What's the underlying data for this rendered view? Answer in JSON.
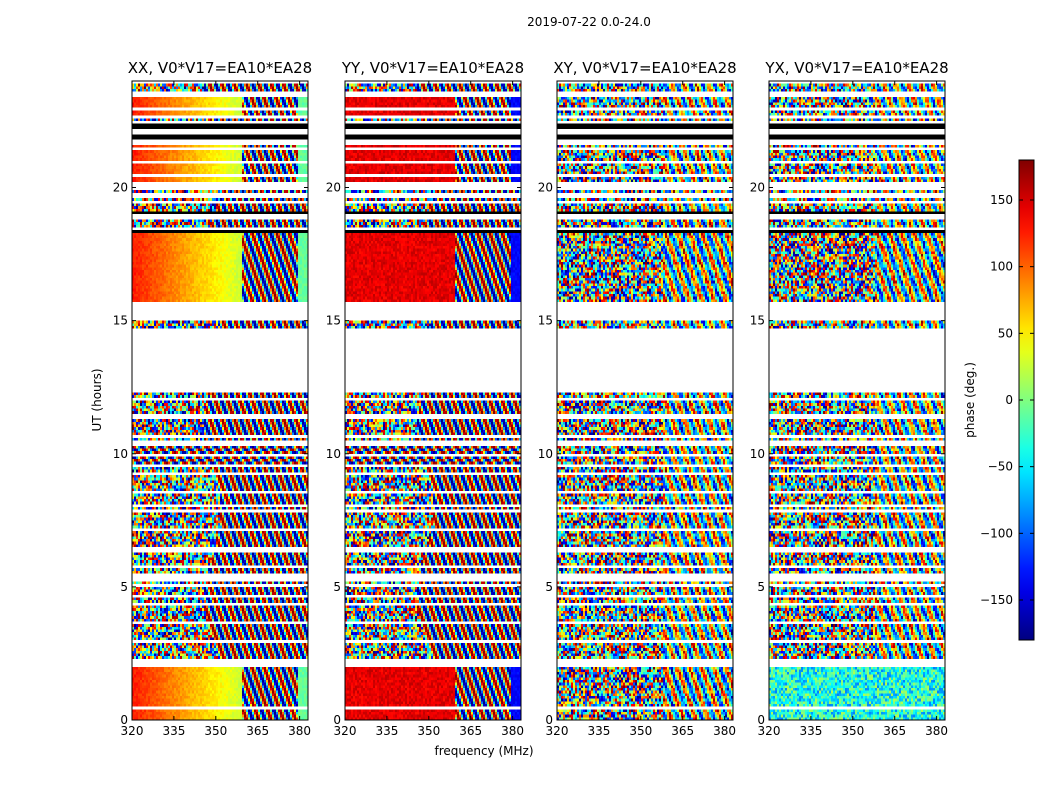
{
  "figure": {
    "suptitle": "2019-07-22 0.0-24.0",
    "xlabel": "frequency (MHz)",
    "ylabel": "UT (hours)",
    "colorbar_label": "phase (deg.)"
  },
  "chart_data": {
    "type": "heatmap",
    "colormap": "jet",
    "panels": [
      {
        "title": "XX, V0*V17=EA10*EA28",
        "pattern": "xx"
      },
      {
        "title": "YY, V0*V17=EA10*EA28",
        "pattern": "yy"
      },
      {
        "title": "XY, V0*V17=EA10*EA28",
        "pattern": "xy"
      },
      {
        "title": "YX, V0*V17=EA10*EA28",
        "pattern": "yx"
      }
    ],
    "x_range": [
      320,
      383
    ],
    "x_ticks": [
      320,
      335,
      350,
      365,
      380
    ],
    "x_tick_labels": [
      "320",
      "335",
      "350",
      "365",
      "380"
    ],
    "y_range": [
      0,
      24
    ],
    "y_ticks": [
      0,
      5,
      10,
      15,
      20
    ],
    "y_tick_labels": [
      "0",
      "5",
      "10",
      "15",
      "20"
    ],
    "colorbar": {
      "range": [
        -180,
        180
      ],
      "ticks": [
        -150,
        -100,
        -50,
        0,
        50,
        100,
        150
      ],
      "tick_labels": [
        "−150",
        "−100",
        "−50",
        "0",
        "50",
        "100",
        "150"
      ]
    },
    "flagged_ut_intervals": [
      [
        12.3,
        14.7
      ],
      [
        15.05,
        15.7
      ],
      [
        18.8,
        19.0
      ],
      [
        19.6,
        19.75
      ],
      [
        20.05,
        20.2
      ],
      [
        21.6,
        21.85
      ],
      [
        22.05,
        22.25
      ],
      [
        22.6,
        22.72
      ],
      [
        23.48,
        23.6
      ],
      [
        10.3,
        10.5
      ],
      [
        9.5,
        9.6
      ],
      [
        6.3,
        6.5
      ],
      [
        5.25,
        5.45
      ],
      [
        2.0,
        2.2
      ],
      [
        0.4,
        0.5
      ],
      [
        4.6,
        4.7
      ],
      [
        3.6,
        3.7
      ],
      [
        8.0,
        8.1
      ],
      [
        11.4,
        11.5
      ]
    ]
  }
}
